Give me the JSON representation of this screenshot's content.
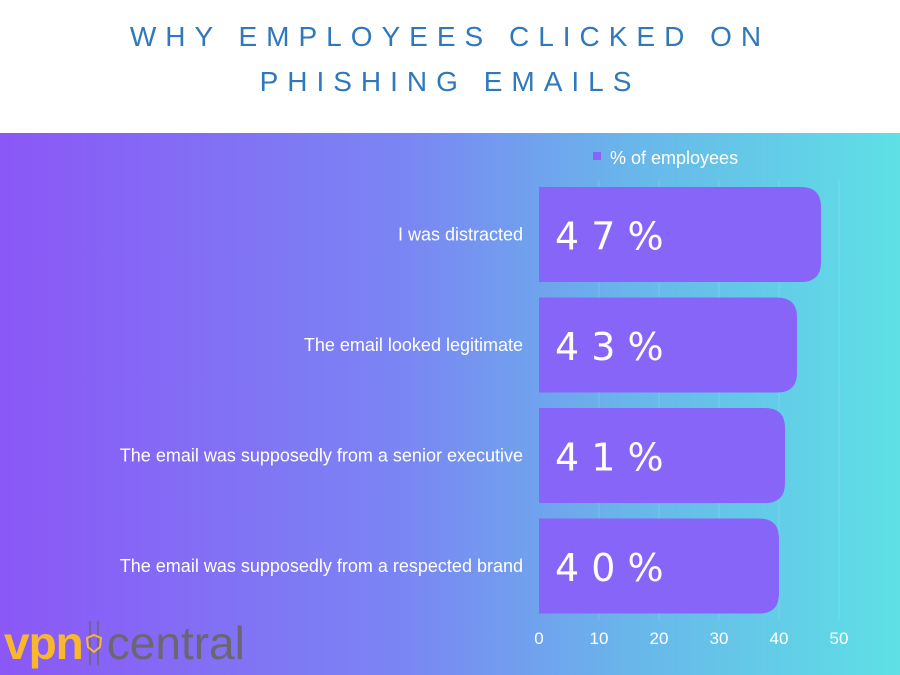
{
  "title_lines": [
    "WHY EMPLOYEES CLICKED ON",
    "PHISHING EMAILS"
  ],
  "logo": {
    "text_primary": "vpn",
    "text_secondary": "central"
  },
  "colors": {
    "title": "#2f78bd",
    "bar": "#8665f8",
    "logo_primary": "#f9b82c",
    "logo_secondary": "#6a6672"
  },
  "chart_data": {
    "type": "bar",
    "orientation": "horizontal",
    "categories": [
      "I was distracted",
      "The email looked legitimate",
      "The email was supposedly from a senior executive",
      "The email was supposedly from a respected brand"
    ],
    "series": [
      {
        "name": "% of employees",
        "values": [
          47,
          43,
          41,
          40
        ]
      }
    ],
    "data_labels": [
      "4 7 %",
      "4 3 %",
      "4 1 %",
      "4 0 %"
    ],
    "xlim": [
      0,
      50
    ],
    "x_ticks": [
      "0",
      "10",
      "20",
      "30",
      "40",
      "50"
    ],
    "grid": true,
    "legend_position": "top"
  }
}
